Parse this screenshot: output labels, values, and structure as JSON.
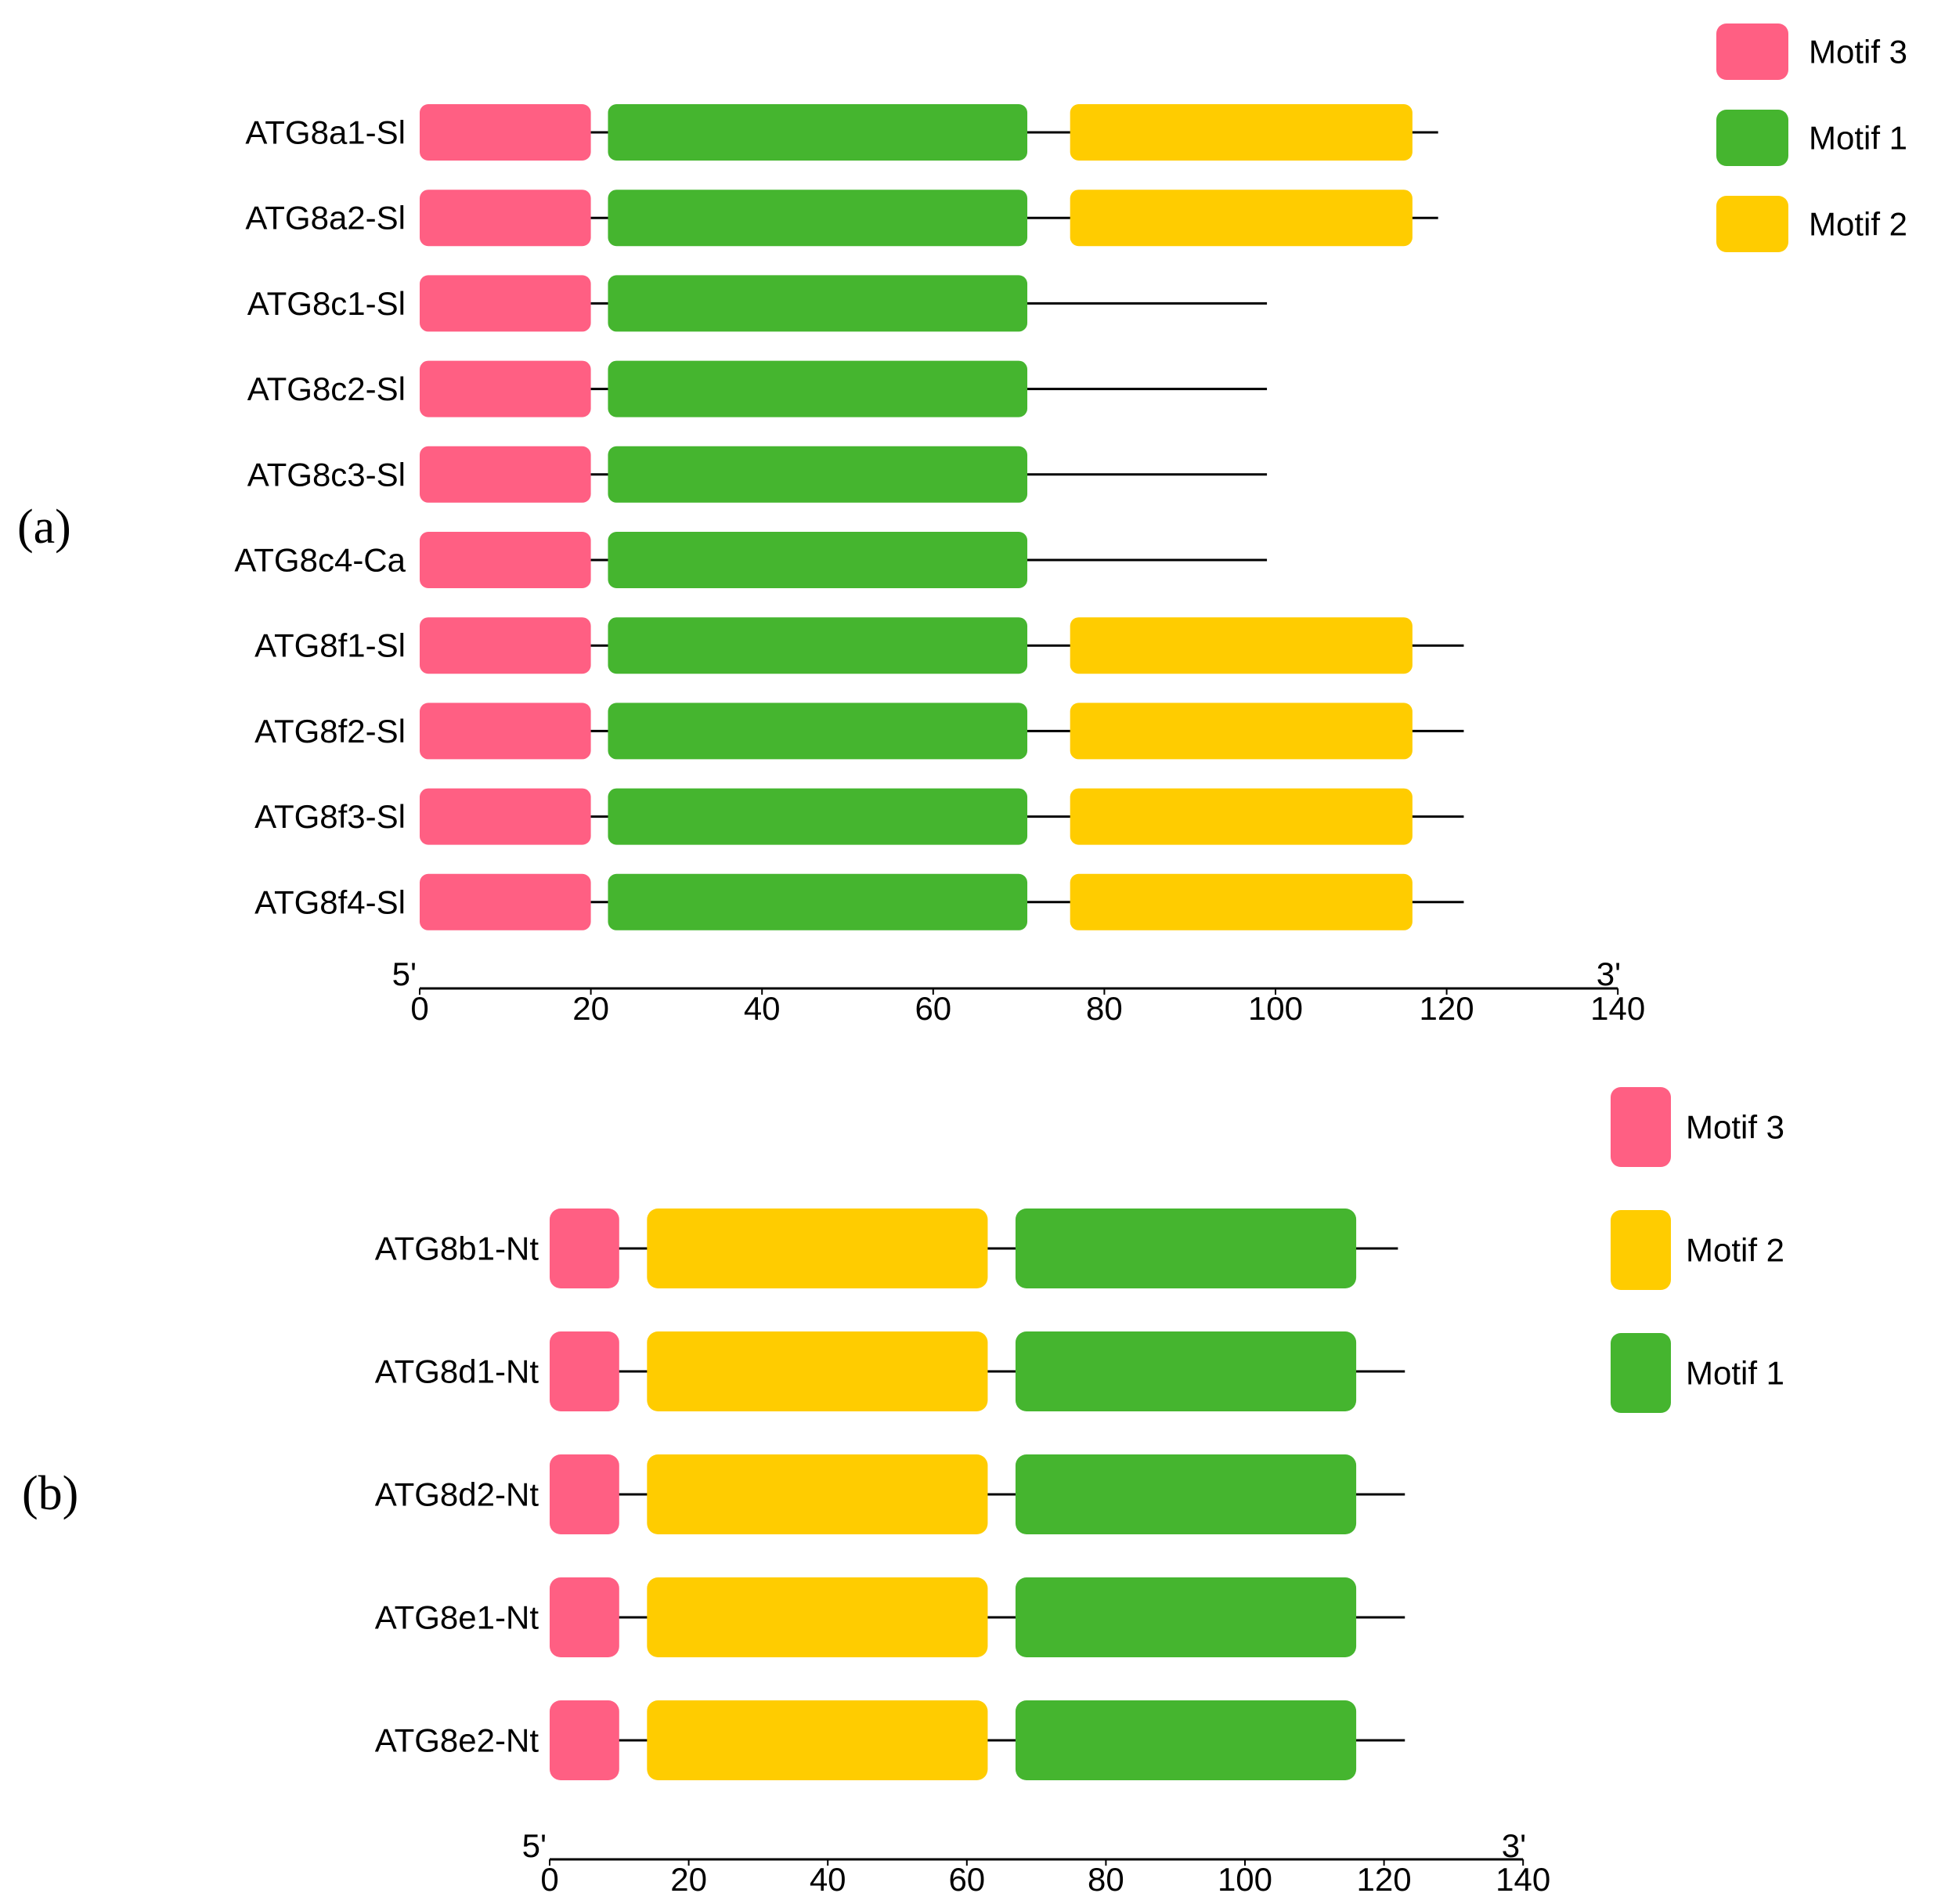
{
  "colors": {
    "Motif 1": "#45b52f",
    "Motif 2": "#ffcc00",
    "Motif 3": "#ff5f83",
    "line": "#000000"
  },
  "panels": [
    {
      "id": "a",
      "label": "(a)",
      "axis": {
        "min": 0,
        "max": 140,
        "ticks": [
          0,
          20,
          40,
          60,
          80,
          100,
          120,
          140
        ],
        "tick_labels": [
          "0",
          "20",
          "40",
          "60",
          "80",
          "100",
          "120",
          "140"
        ],
        "left_end_label": "5'",
        "right_end_label": "3'"
      },
      "legend": [
        "Motif 3",
        "Motif 1",
        "Motif 2"
      ],
      "genes": [
        {
          "name": "ATG8a1-Sl",
          "length": 119,
          "motifs": [
            {
              "motif": "Motif 3",
              "start": 0,
              "end": 20
            },
            {
              "motif": "Motif 1",
              "start": 22,
              "end": 71
            },
            {
              "motif": "Motif 2",
              "start": 76,
              "end": 116
            }
          ]
        },
        {
          "name": "ATG8a2-Sl",
          "length": 119,
          "motifs": [
            {
              "motif": "Motif 3",
              "start": 0,
              "end": 20
            },
            {
              "motif": "Motif 1",
              "start": 22,
              "end": 71
            },
            {
              "motif": "Motif 2",
              "start": 76,
              "end": 116
            }
          ]
        },
        {
          "name": "ATG8c1-Sl",
          "length": 99,
          "motifs": [
            {
              "motif": "Motif 3",
              "start": 0,
              "end": 20
            },
            {
              "motif": "Motif 1",
              "start": 22,
              "end": 71
            }
          ]
        },
        {
          "name": "ATG8c2-Sl",
          "length": 99,
          "motifs": [
            {
              "motif": "Motif 3",
              "start": 0,
              "end": 20
            },
            {
              "motif": "Motif 1",
              "start": 22,
              "end": 71
            }
          ]
        },
        {
          "name": "ATG8c3-Sl",
          "length": 99,
          "motifs": [
            {
              "motif": "Motif 3",
              "start": 0,
              "end": 20
            },
            {
              "motif": "Motif 1",
              "start": 22,
              "end": 71
            }
          ]
        },
        {
          "name": "ATG8c4-Ca",
          "length": 99,
          "motifs": [
            {
              "motif": "Motif 3",
              "start": 0,
              "end": 20
            },
            {
              "motif": "Motif 1",
              "start": 22,
              "end": 71
            }
          ]
        },
        {
          "name": "ATG8f1-Sl",
          "length": 122,
          "motifs": [
            {
              "motif": "Motif 3",
              "start": 0,
              "end": 20
            },
            {
              "motif": "Motif 1",
              "start": 22,
              "end": 71
            },
            {
              "motif": "Motif 2",
              "start": 76,
              "end": 116
            }
          ]
        },
        {
          "name": "ATG8f2-Sl",
          "length": 122,
          "motifs": [
            {
              "motif": "Motif 3",
              "start": 0,
              "end": 20
            },
            {
              "motif": "Motif 1",
              "start": 22,
              "end": 71
            },
            {
              "motif": "Motif 2",
              "start": 76,
              "end": 116
            }
          ]
        },
        {
          "name": "ATG8f3-Sl",
          "length": 122,
          "motifs": [
            {
              "motif": "Motif 3",
              "start": 0,
              "end": 20
            },
            {
              "motif": "Motif 1",
              "start": 22,
              "end": 71
            },
            {
              "motif": "Motif 2",
              "start": 76,
              "end": 116
            }
          ]
        },
        {
          "name": "ATG8f4-Sl",
          "length": 122,
          "motifs": [
            {
              "motif": "Motif 3",
              "start": 0,
              "end": 20
            },
            {
              "motif": "Motif 1",
              "start": 22,
              "end": 71
            },
            {
              "motif": "Motif 2",
              "start": 76,
              "end": 116
            }
          ]
        }
      ]
    },
    {
      "id": "b",
      "label": "(b)",
      "axis": {
        "min": 0,
        "max": 140,
        "ticks": [
          0,
          20,
          40,
          60,
          80,
          100,
          120,
          140
        ],
        "tick_labels": [
          "0",
          "20",
          "40",
          "60",
          "80",
          "100",
          "120",
          "140"
        ],
        "left_end_label": "5'",
        "right_end_label": "3'"
      },
      "legend": [
        "Motif 3",
        "Motif 2",
        "Motif 1"
      ],
      "genes": [
        {
          "name": "ATG8b1-Nt",
          "length": 122,
          "motifs": [
            {
              "motif": "Motif 3",
              "start": 0,
              "end": 10
            },
            {
              "motif": "Motif 2",
              "start": 14,
              "end": 63
            },
            {
              "motif": "Motif 1",
              "start": 67,
              "end": 116
            }
          ]
        },
        {
          "name": "ATG8d1-Nt",
          "length": 123,
          "motifs": [
            {
              "motif": "Motif 3",
              "start": 0,
              "end": 10
            },
            {
              "motif": "Motif 2",
              "start": 14,
              "end": 63
            },
            {
              "motif": "Motif 1",
              "start": 67,
              "end": 116
            }
          ]
        },
        {
          "name": "ATG8d2-Nt",
          "length": 123,
          "motifs": [
            {
              "motif": "Motif 3",
              "start": 0,
              "end": 10
            },
            {
              "motif": "Motif 2",
              "start": 14,
              "end": 63
            },
            {
              "motif": "Motif 1",
              "start": 67,
              "end": 116
            }
          ]
        },
        {
          "name": "ATG8e1-Nt",
          "length": 123,
          "motifs": [
            {
              "motif": "Motif 3",
              "start": 0,
              "end": 10
            },
            {
              "motif": "Motif 2",
              "start": 14,
              "end": 63
            },
            {
              "motif": "Motif 1",
              "start": 67,
              "end": 116
            }
          ]
        },
        {
          "name": "ATG8e2-Nt",
          "length": 123,
          "motifs": [
            {
              "motif": "Motif 3",
              "start": 0,
              "end": 10
            },
            {
              "motif": "Motif 2",
              "start": 14,
              "end": 63
            },
            {
              "motif": "Motif 1",
              "start": 67,
              "end": 116
            }
          ]
        }
      ]
    }
  ]
}
